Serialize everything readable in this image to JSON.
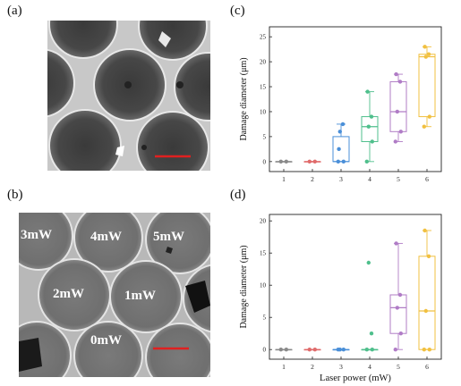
{
  "panels": {
    "a": {
      "label": "(a)"
    },
    "b": {
      "label": "(b)",
      "power_labels": [
        "3mW",
        "4mW",
        "5mW",
        "2mW",
        "1mW",
        "0mW"
      ]
    },
    "c": {
      "label": "(c)"
    },
    "d": {
      "label": "(d)"
    }
  },
  "colors": {
    "1": "#8a8a8a",
    "2": "#e06b6b",
    "3": "#4a8fd8",
    "4": "#4fbf8c",
    "5": "#b07cc6",
    "6": "#f1c040",
    "scale_bar": "#e02020"
  },
  "chart_data": [
    {
      "type": "box",
      "panel": "c",
      "xlabel": "Laser power (mW)",
      "ylabel": "Damage diameter (μm)",
      "categories": [
        "1",
        "2",
        "3",
        "4",
        "5",
        "6"
      ],
      "ylim": [
        -2,
        27
      ],
      "yticks": [
        0,
        5,
        10,
        15,
        20,
        25
      ],
      "boxes": [
        {
          "category": "1",
          "min": 0,
          "q1": 0,
          "median": 0,
          "q3": 0,
          "max": 0,
          "points": [
            0,
            0
          ]
        },
        {
          "category": "2",
          "min": 0,
          "q1": 0,
          "median": 0,
          "q3": 0,
          "max": 0,
          "points": [
            0,
            0
          ]
        },
        {
          "category": "3",
          "min": 0,
          "q1": 0,
          "median": 0,
          "q3": 5,
          "max": 7.5,
          "points": [
            0,
            0,
            6,
            7.5,
            2.5
          ]
        },
        {
          "category": "4",
          "min": 0,
          "q1": 4,
          "median": 7,
          "q3": 9,
          "max": 14,
          "points": [
            0,
            4,
            7,
            9,
            14
          ]
        },
        {
          "category": "5",
          "min": 4,
          "q1": 6,
          "median": 10,
          "q3": 16,
          "max": 17.5,
          "points": [
            4,
            6,
            10,
            16,
            17.5
          ]
        },
        {
          "category": "6",
          "min": 7,
          "q1": 9,
          "median": 21,
          "q3": 21.5,
          "max": 23,
          "points": [
            7,
            9,
            21,
            21.5,
            23
          ]
        }
      ]
    },
    {
      "type": "box",
      "panel": "d",
      "xlabel": "Laser power (mW)",
      "ylabel": "Damage diameter (μm)",
      "categories": [
        "1",
        "2",
        "3",
        "4",
        "5",
        "6"
      ],
      "ylim": [
        -1.5,
        21
      ],
      "yticks": [
        0,
        5,
        10,
        15,
        20
      ],
      "boxes": [
        {
          "category": "1",
          "min": 0,
          "q1": 0,
          "median": 0,
          "q3": 0,
          "max": 0,
          "points": [
            0,
            0
          ]
        },
        {
          "category": "2",
          "min": 0,
          "q1": 0,
          "median": 0,
          "q3": 0,
          "max": 0,
          "points": [
            0,
            0
          ]
        },
        {
          "category": "3",
          "min": 0,
          "q1": 0,
          "median": 0,
          "q3": 0,
          "max": 0,
          "points": [
            0,
            0,
            0
          ]
        },
        {
          "category": "4",
          "min": 0,
          "q1": 0,
          "median": 0,
          "q3": 0,
          "max": 0,
          "points": [
            0,
            0,
            13.5,
            2.5
          ]
        },
        {
          "category": "5",
          "min": 0,
          "q1": 2.5,
          "median": 6.5,
          "q3": 8.5,
          "max": 16.5,
          "points": [
            0,
            2.5,
            6.5,
            8.5,
            16.5
          ]
        },
        {
          "category": "6",
          "min": 0,
          "q1": 0,
          "median": 6,
          "q3": 14.5,
          "max": 18.5,
          "points": [
            0,
            0,
            6,
            14.5,
            18.5
          ]
        }
      ]
    }
  ]
}
